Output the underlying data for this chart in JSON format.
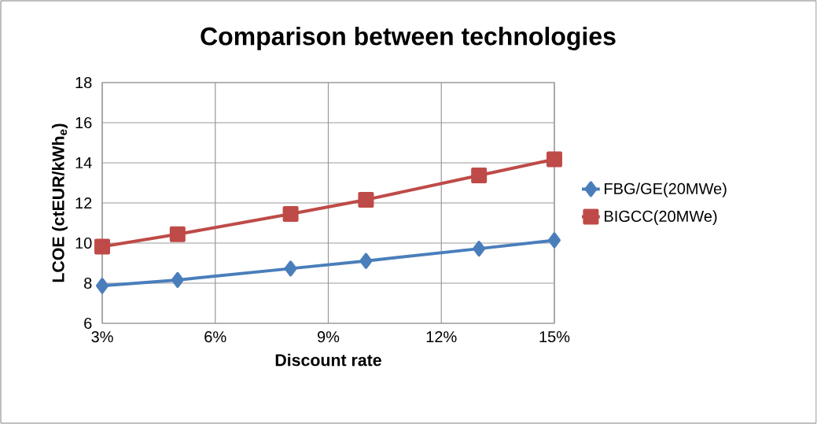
{
  "chart_data": {
    "type": "line",
    "title": "**Comparison between technologies**",
    "xlabel": "**Discount rate**",
    "ylabel": "**LCOE (ctEUR/kWh$_{e}$)**",
    "x": [
      3,
      5,
      8,
      10,
      13,
      15
    ],
    "series": [
      {
        "name": "FBG/GE(20MWe)",
        "color": "#4a7ebb",
        "marker": "diamond",
        "values": [
          7.87,
          8.16,
          8.73,
          9.11,
          9.72,
          10.14
        ]
      },
      {
        "name": "BIGCC(20MWe)",
        "color": "#be4b48",
        "marker": "square",
        "values": [
          9.82,
          10.44,
          11.45,
          12.16,
          13.37,
          14.18
        ]
      }
    ],
    "xlim": [
      3,
      15
    ],
    "xticks": [
      {
        "value": 3,
        "label": "3%"
      },
      {
        "value": 6,
        "label": "6%"
      },
      {
        "value": 9,
        "label": "9%"
      },
      {
        "value": 12,
        "label": "12%"
      },
      {
        "value": 15,
        "label": "15%"
      }
    ],
    "ylim": [
      6,
      18
    ],
    "yticks": [
      6,
      8,
      10,
      12,
      14,
      16,
      18
    ],
    "grid": true,
    "legend": "right",
    "line_style": "solid"
  }
}
